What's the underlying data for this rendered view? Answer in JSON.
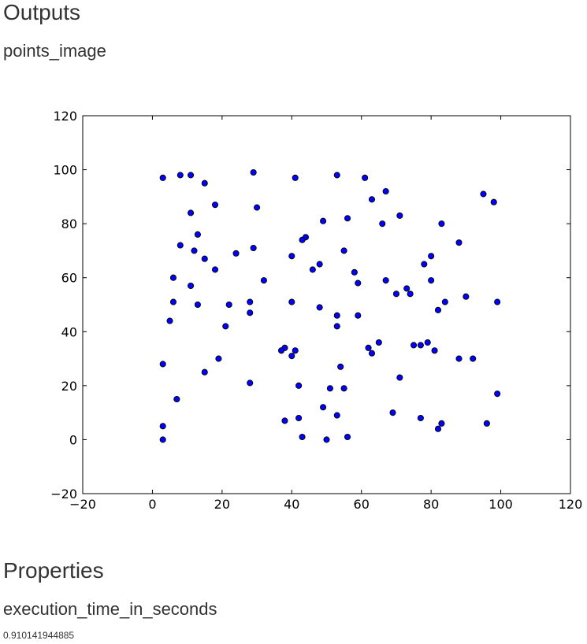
{
  "outputs_heading": "Outputs",
  "output_name": "points_image",
  "properties_heading": "Properties",
  "property_name": "execution_time_in_seconds",
  "property_value": "0.910141944885",
  "chart_data": {
    "type": "scatter",
    "title": "",
    "xlabel": "",
    "ylabel": "",
    "xlim": [
      -20,
      120
    ],
    "ylim": [
      -20,
      120
    ],
    "xticks": [
      "−20",
      "0",
      "20",
      "40",
      "60",
      "80",
      "100",
      "120"
    ],
    "yticks": [
      "−20",
      "0",
      "20",
      "40",
      "60",
      "80",
      "100",
      "120"
    ],
    "grid": false,
    "marker_color": "#0000ff",
    "marker_edge": "#000000",
    "points": [
      {
        "x": 3,
        "y": 97
      },
      {
        "x": 8,
        "y": 98
      },
      {
        "x": 11,
        "y": 98
      },
      {
        "x": 15,
        "y": 95
      },
      {
        "x": 29,
        "y": 99
      },
      {
        "x": 41,
        "y": 97
      },
      {
        "x": 53,
        "y": 98
      },
      {
        "x": 61,
        "y": 97
      },
      {
        "x": 67,
        "y": 92
      },
      {
        "x": 63,
        "y": 89
      },
      {
        "x": 95,
        "y": 91
      },
      {
        "x": 98,
        "y": 88
      },
      {
        "x": 18,
        "y": 87
      },
      {
        "x": 30,
        "y": 86
      },
      {
        "x": 11,
        "y": 84
      },
      {
        "x": 71,
        "y": 83
      },
      {
        "x": 56,
        "y": 82
      },
      {
        "x": 49,
        "y": 81
      },
      {
        "x": 66,
        "y": 80
      },
      {
        "x": 83,
        "y": 80
      },
      {
        "x": 13,
        "y": 76
      },
      {
        "x": 44,
        "y": 75
      },
      {
        "x": 43,
        "y": 74
      },
      {
        "x": 88,
        "y": 73
      },
      {
        "x": 8,
        "y": 72
      },
      {
        "x": 29,
        "y": 71
      },
      {
        "x": 12,
        "y": 70
      },
      {
        "x": 55,
        "y": 70
      },
      {
        "x": 24,
        "y": 69
      },
      {
        "x": 40,
        "y": 68
      },
      {
        "x": 80,
        "y": 68
      },
      {
        "x": 15,
        "y": 67
      },
      {
        "x": 48,
        "y": 65
      },
      {
        "x": 78,
        "y": 65
      },
      {
        "x": 18,
        "y": 63
      },
      {
        "x": 46,
        "y": 63
      },
      {
        "x": 58,
        "y": 62
      },
      {
        "x": 6,
        "y": 60
      },
      {
        "x": 32,
        "y": 59
      },
      {
        "x": 67,
        "y": 59
      },
      {
        "x": 80,
        "y": 59
      },
      {
        "x": 59,
        "y": 58
      },
      {
        "x": 11,
        "y": 57
      },
      {
        "x": 73,
        "y": 56
      },
      {
        "x": 70,
        "y": 54
      },
      {
        "x": 74,
        "y": 54
      },
      {
        "x": 90,
        "y": 53
      },
      {
        "x": 6,
        "y": 51
      },
      {
        "x": 28,
        "y": 51
      },
      {
        "x": 40,
        "y": 51
      },
      {
        "x": 84,
        "y": 51
      },
      {
        "x": 99,
        "y": 51
      },
      {
        "x": 13,
        "y": 50
      },
      {
        "x": 22,
        "y": 50
      },
      {
        "x": 48,
        "y": 49
      },
      {
        "x": 82,
        "y": 48
      },
      {
        "x": 28,
        "y": 47
      },
      {
        "x": 53,
        "y": 46
      },
      {
        "x": 59,
        "y": 46
      },
      {
        "x": 5,
        "y": 44
      },
      {
        "x": 21,
        "y": 42
      },
      {
        "x": 53,
        "y": 42
      },
      {
        "x": 65,
        "y": 36
      },
      {
        "x": 75,
        "y": 35
      },
      {
        "x": 77,
        "y": 35
      },
      {
        "x": 79,
        "y": 36
      },
      {
        "x": 38,
        "y": 34
      },
      {
        "x": 62,
        "y": 34
      },
      {
        "x": 37,
        "y": 33
      },
      {
        "x": 41,
        "y": 33
      },
      {
        "x": 81,
        "y": 33
      },
      {
        "x": 63,
        "y": 32
      },
      {
        "x": 40,
        "y": 31
      },
      {
        "x": 19,
        "y": 30
      },
      {
        "x": 88,
        "y": 30
      },
      {
        "x": 92,
        "y": 30
      },
      {
        "x": 3,
        "y": 28
      },
      {
        "x": 54,
        "y": 27
      },
      {
        "x": 15,
        "y": 25
      },
      {
        "x": 71,
        "y": 23
      },
      {
        "x": 28,
        "y": 21
      },
      {
        "x": 42,
        "y": 20
      },
      {
        "x": 51,
        "y": 19
      },
      {
        "x": 55,
        "y": 19
      },
      {
        "x": 99,
        "y": 17
      },
      {
        "x": 7,
        "y": 15
      },
      {
        "x": 49,
        "y": 12
      },
      {
        "x": 69,
        "y": 10
      },
      {
        "x": 53,
        "y": 9
      },
      {
        "x": 42,
        "y": 8
      },
      {
        "x": 77,
        "y": 8
      },
      {
        "x": 38,
        "y": 7
      },
      {
        "x": 83,
        "y": 6
      },
      {
        "x": 96,
        "y": 6
      },
      {
        "x": 3,
        "y": 5
      },
      {
        "x": 82,
        "y": 4
      },
      {
        "x": 43,
        "y": 1
      },
      {
        "x": 56,
        "y": 1
      },
      {
        "x": 3,
        "y": 0
      },
      {
        "x": 50,
        "y": 0
      }
    ]
  }
}
